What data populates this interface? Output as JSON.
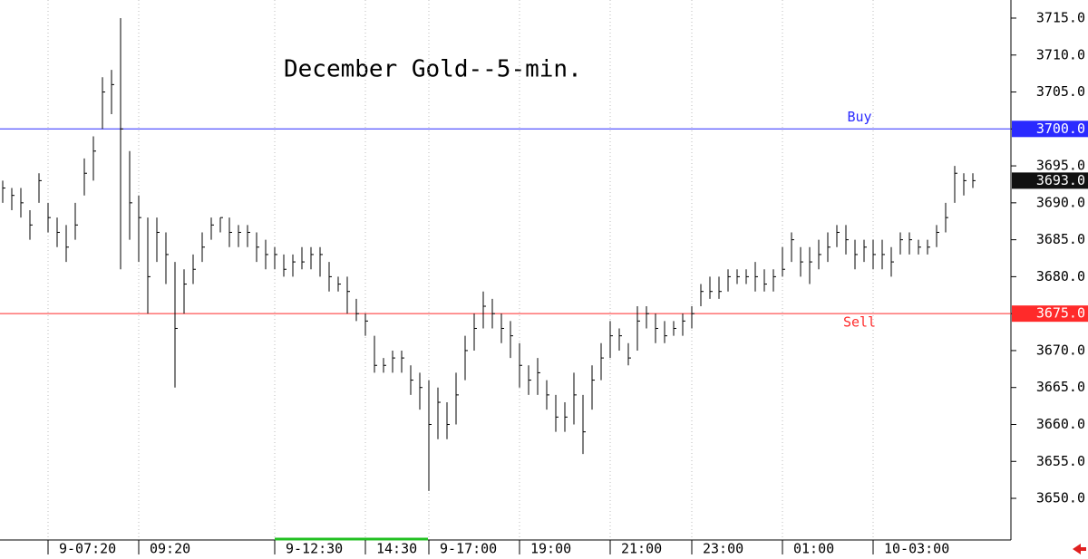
{
  "chart_data": {
    "type": "ohlc",
    "title": "December Gold--5-min.",
    "categories": [
      null,
      null,
      null,
      null,
      null,
      "9-07:20",
      null,
      null,
      null,
      null,
      null,
      null,
      null,
      null,
      null,
      "09:20",
      null,
      null,
      null,
      null,
      null,
      null,
      null,
      null,
      null,
      null,
      null,
      null,
      null,
      null,
      "9-12:30",
      null,
      null,
      null,
      null,
      null,
      null,
      null,
      null,
      null,
      "14:30",
      null,
      null,
      null,
      null,
      null,
      null,
      "9-17:00",
      null,
      null,
      null,
      null,
      null,
      null,
      null,
      null,
      null,
      "19:00",
      null,
      null,
      null,
      null,
      null,
      null,
      null,
      null,
      null,
      "21:00",
      null,
      null,
      null,
      null,
      null,
      null,
      null,
      null,
      "23:00",
      null,
      null,
      null,
      null,
      null,
      null,
      null,
      null,
      null,
      "01:00",
      null,
      null,
      null,
      null,
      null,
      null,
      null,
      null,
      null,
      "10-03:00",
      null,
      null,
      null,
      null,
      null,
      null,
      null,
      null,
      null,
      null,
      null
    ],
    "high": [
      3693,
      3692,
      3692,
      3689,
      3694,
      3690,
      3688,
      3687,
      3690,
      3696,
      3699,
      3707,
      3708,
      3715,
      3697,
      3691,
      3688,
      3688,
      3686,
      3682,
      3681,
      3683,
      3686,
      3688,
      3688,
      3688,
      3687,
      3687,
      3686,
      3685,
      3684,
      3683,
      3683,
      3684,
      3684,
      3684,
      3682,
      3680,
      3680,
      3677,
      3675,
      3672,
      3669,
      3670,
      3670,
      3668,
      3667,
      3666,
      3665,
      3663,
      3667,
      3672,
      3675,
      3678,
      3677,
      3675,
      3674,
      3671,
      3668,
      3669,
      3666,
      3664,
      3663,
      3667,
      3664,
      3668,
      3671,
      3674,
      3673,
      3671,
      3676,
      3676,
      3675,
      3674,
      3674,
      3675,
      3676,
      3679,
      3680,
      3680,
      3681,
      3681,
      3681,
      3682,
      3681,
      3681,
      3684,
      3686,
      3684,
      3684,
      3685,
      3686,
      3687,
      3687,
      3685,
      3685,
      3685,
      3685,
      3684,
      3686,
      3686,
      3685,
      3685,
      3687,
      3690,
      3695,
      3694,
      3694
    ],
    "low": [
      3690,
      3689,
      3688,
      3685,
      3690,
      3686,
      3684,
      3682,
      3685,
      3691,
      3693,
      3700,
      3702,
      3681,
      3685,
      3682,
      3675,
      3682,
      3679,
      3665,
      3675,
      3679,
      3682,
      3685,
      3686,
      3684,
      3684,
      3684,
      3682,
      3681,
      3681,
      3680,
      3680,
      3681,
      3681,
      3680,
      3678,
      3678,
      3675,
      3674,
      3672,
      3667,
      3667,
      3667,
      3667,
      3664,
      3662,
      3651,
      3658,
      3658,
      3660,
      3666,
      3670,
      3673,
      3673,
      3671,
      3669,
      3665,
      3664,
      3664,
      3662,
      3659,
      3659,
      3660,
      3656,
      3662,
      3666,
      3669,
      3670,
      3668,
      3670,
      3673,
      3671,
      3671,
      3672,
      3672,
      3673,
      3676,
      3677,
      3677,
      3678,
      3679,
      3679,
      3678,
      3678,
      3678,
      3680,
      3682,
      3680,
      3679,
      3681,
      3682,
      3684,
      3683,
      3681,
      3682,
      3681,
      3681,
      3680,
      3683,
      3683,
      3683,
      3683,
      3684,
      3686,
      3690,
      3691,
      3692
    ],
    "close": [
      3692,
      3691,
      3690,
      3687,
      3693,
      3688,
      3686,
      3684,
      3687,
      3694,
      3697,
      3705,
      3706,
      3700,
      3690,
      3688,
      3680,
      3686,
      3683,
      3673,
      3679,
      3681,
      3684,
      3687,
      3688,
      3686,
      3686,
      3686,
      3684,
      3683,
      3683,
      3681,
      3682,
      3682,
      3683,
      3683,
      3680,
      3679,
      3678,
      3675,
      3674,
      3668,
      3668,
      3669,
      3669,
      3666,
      3665,
      3660,
      3663,
      3660,
      3664,
      3670,
      3673,
      3676,
      3675,
      3673,
      3672,
      3668,
      3666,
      3667,
      3664,
      3661,
      3661,
      3664,
      3659,
      3666,
      3669,
      3672,
      3672,
      3669,
      3674,
      3675,
      3673,
      3672,
      3673,
      3674,
      3675,
      3678,
      3678,
      3678,
      3680,
      3680,
      3680,
      3680,
      3679,
      3680,
      3681,
      3685,
      3682,
      3682,
      3683,
      3684,
      3686,
      3685,
      3683,
      3684,
      3683,
      3683,
      3682,
      3685,
      3685,
      3684,
      3684,
      3686,
      3688,
      3694,
      3693,
      3693
    ],
    "color": "#000000",
    "ylim": [
      3645.1,
      3717.45
    ],
    "yticks": [
      {
        "value": 3650,
        "label": "3650.0"
      },
      {
        "value": 3655,
        "label": "3655.0"
      },
      {
        "value": 3660,
        "label": "3660.0"
      },
      {
        "value": 3665,
        "label": "3665.0"
      },
      {
        "value": 3670,
        "label": "3670.0"
      },
      {
        "value": 3675,
        "label": "3675.0"
      },
      {
        "value": 3680,
        "label": "3680.0"
      },
      {
        "value": 3685,
        "label": "3685.0"
      },
      {
        "value": 3690,
        "label": "3690.0"
      },
      {
        "value": 3695,
        "label": "3695.0"
      },
      {
        "value": 3700,
        "label": "3700.0"
      },
      {
        "value": 3705,
        "label": "3705.0"
      },
      {
        "value": 3710,
        "label": "3710.0"
      },
      {
        "value": 3715,
        "label": "3715.0"
      }
    ],
    "lines": [
      {
        "label": "Buy",
        "value": 3700,
        "value_label": "3700.0",
        "color": "#2a2aff"
      },
      {
        "label": "Sell",
        "value": 3675,
        "value_label": "3675.0",
        "color": "#ff2a2a"
      }
    ],
    "last_price": {
      "value": 3693,
      "label": "3693.0"
    }
  }
}
